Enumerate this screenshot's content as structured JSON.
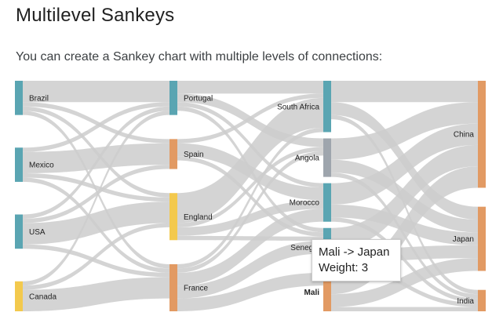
{
  "header": {
    "title": "Multilevel Sankeys",
    "description": "You can create a Sankey chart with multiple levels of connections:"
  },
  "chart_data": {
    "type": "sankey",
    "levels": [
      [
        "Brazil",
        "Mexico",
        "USA",
        "Canada"
      ],
      [
        "Portugal",
        "Spain",
        "England",
        "France"
      ],
      [
        "South Africa",
        "Angola",
        "Morocco",
        "Senegal",
        "Mali"
      ],
      [
        "China",
        "Japan",
        "India"
      ]
    ],
    "node_colors": {
      "Brazil": "#5aa5b2",
      "Mexico": "#5aa5b2",
      "USA": "#5aa5b2",
      "Canada": "#f3c94d",
      "Portugal": "#5aa5b2",
      "Spain": "#e29a63",
      "England": "#f3c94d",
      "France": "#e29a63",
      "South Africa": "#5aa5b2",
      "Angola": "#9ea5ad",
      "Morocco": "#5aa5b2",
      "Senegal": "#5aa5b2",
      "Mali": "#e29a63",
      "China": "#e29a63",
      "Japan": "#e29a63",
      "India": "#e29a63"
    },
    "link_color": "#cdcdcd",
    "links": [
      [
        "Brazil",
        "Portugal",
        5
      ],
      [
        "Brazil",
        "France",
        1
      ],
      [
        "Brazil",
        "Spain",
        1
      ],
      [
        "Brazil",
        "England",
        1
      ],
      [
        "Canada",
        "Portugal",
        1
      ],
      [
        "Canada",
        "France",
        5
      ],
      [
        "Canada",
        "England",
        1
      ],
      [
        "Mexico",
        "Portugal",
        1
      ],
      [
        "Mexico",
        "France",
        1
      ],
      [
        "Mexico",
        "Spain",
        5
      ],
      [
        "Mexico",
        "England",
        1
      ],
      [
        "USA",
        "Portugal",
        1
      ],
      [
        "USA",
        "France",
        1
      ],
      [
        "USA",
        "Spain",
        1
      ],
      [
        "USA",
        "England",
        5
      ],
      [
        "Portugal",
        "Angola",
        2
      ],
      [
        "Portugal",
        "Senegal",
        1
      ],
      [
        "Portugal",
        "Morocco",
        1
      ],
      [
        "Portugal",
        "South Africa",
        3
      ],
      [
        "France",
        "Angola",
        1
      ],
      [
        "France",
        "Senegal",
        3
      ],
      [
        "France",
        "Mali",
        3
      ],
      [
        "France",
        "Morocco",
        3
      ],
      [
        "France",
        "South Africa",
        1
      ],
      [
        "Spain",
        "Senegal",
        1
      ],
      [
        "Spain",
        "Morocco",
        3
      ],
      [
        "Spain",
        "South Africa",
        1
      ],
      [
        "England",
        "Angola",
        1
      ],
      [
        "England",
        "Senegal",
        1
      ],
      [
        "England",
        "Morocco",
        2
      ],
      [
        "England",
        "South Africa",
        7
      ],
      [
        "South Africa",
        "China",
        5
      ],
      [
        "South Africa",
        "India",
        1
      ],
      [
        "South Africa",
        "Japan",
        3
      ],
      [
        "Angola",
        "China",
        5
      ],
      [
        "Angola",
        "India",
        1
      ],
      [
        "Angola",
        "Japan",
        3
      ],
      [
        "Senegal",
        "China",
        5
      ],
      [
        "Senegal",
        "India",
        1
      ],
      [
        "Senegal",
        "Japan",
        3
      ],
      [
        "Mali",
        "China",
        5
      ],
      [
        "Mali",
        "India",
        1
      ],
      [
        "Mali",
        "Japan",
        3
      ],
      [
        "Morocco",
        "China",
        5
      ],
      [
        "Morocco",
        "India",
        1
      ],
      [
        "Morocco",
        "Japan",
        3
      ]
    ],
    "tooltip": {
      "line1": "Mali -> Japan",
      "line2": "Weight: 3"
    }
  }
}
